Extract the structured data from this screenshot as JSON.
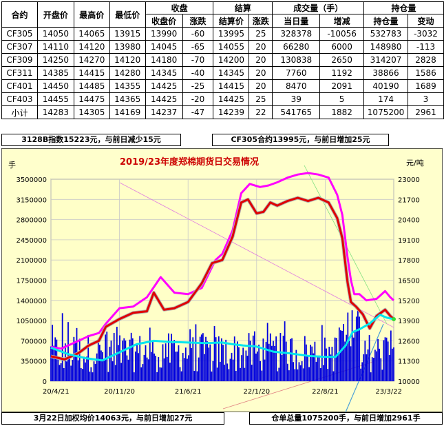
{
  "table": {
    "group_headers": {
      "close": "收盘",
      "settle": "结算",
      "volume": "成交量（手）",
      "oi": "持仓量"
    },
    "columns": [
      "合约",
      "开盘价",
      "最高价",
      "最低价",
      "收盘价",
      "涨跌",
      "结算价",
      "涨跌",
      "当日量",
      "增减",
      "持仓量",
      "变动"
    ],
    "rows": [
      [
        "CF305",
        "14050",
        "14065",
        "13915",
        "13990",
        "-60",
        "13995",
        "25",
        "328378",
        "-10056",
        "532783",
        "-3032"
      ],
      [
        "CF307",
        "14110",
        "14120",
        "13980",
        "14045",
        "-65",
        "14055",
        "20",
        "66280",
        "6000",
        "148980",
        "-113"
      ],
      [
        "CF309",
        "14250",
        "14270",
        "14120",
        "14180",
        "-70",
        "14200",
        "20",
        "130838",
        "2650",
        "314207",
        "2828"
      ],
      [
        "CF311",
        "14385",
        "14415",
        "14280",
        "14345",
        "-40",
        "14345",
        "20",
        "7760",
        "1192",
        "38866",
        "1586"
      ],
      [
        "CF401",
        "14450",
        "14485",
        "14355",
        "14425",
        "-25",
        "14415",
        "20",
        "8470",
        "2091",
        "40190",
        "1689"
      ],
      [
        "CF403",
        "14455",
        "14475",
        "14365",
        "14425",
        "-20",
        "14425",
        "25",
        "39",
        "5",
        "174",
        "3"
      ],
      [
        "小计",
        "14283",
        "14305",
        "14169",
        "14237",
        "-47",
        "14239",
        "22",
        "541765",
        "1882",
        "1075200",
        "2961"
      ]
    ]
  },
  "info": {
    "index_text": "3128B指数15223元，与前日减少15元",
    "contract_text": "CF305合约13995元，与前日增加25元",
    "weighted_text": "3月22日加权均价14063元，与前日增加27元",
    "warehouse_text": "仓单总量1075200手，与前日增加2961手"
  },
  "chart_data": {
    "type": "line",
    "title": "2019/23年度郑棉期货日交易情况",
    "left_axis_unit": "手",
    "right_axis_unit": "元/吨",
    "left_ticks": [
      0,
      350000,
      700000,
      1050000,
      1400000,
      1750000,
      2100000,
      2450000,
      2800000,
      3150000,
      3500000
    ],
    "right_ticks": [
      10000,
      11300,
      12600,
      13900,
      15200,
      16500,
      17800,
      19100,
      20400,
      21700,
      23000
    ],
    "x_ticks": [
      "20/4/21",
      "20/11/20",
      "21/6/21",
      "22/1/20",
      "22/8/21",
      "23/3/22"
    ],
    "ylim_left": [
      0,
      3500000
    ],
    "ylim_right": [
      10000,
      23000
    ],
    "grid": true,
    "series": [
      {
        "name": "",
        "axis": "right",
        "color": "#ff00ff",
        "points": [
          [
            0,
            12200
          ],
          [
            0.03,
            12100
          ],
          [
            0.07,
            12500
          ],
          [
            0.11,
            12900
          ],
          [
            0.14,
            13100
          ],
          [
            0.16,
            13700
          ],
          [
            0.2,
            14700
          ],
          [
            0.24,
            14800
          ],
          [
            0.28,
            15400
          ],
          [
            0.32,
            16700
          ],
          [
            0.36,
            15700
          ],
          [
            0.4,
            15600
          ],
          [
            0.44,
            16000
          ],
          [
            0.48,
            17800
          ],
          [
            0.5,
            18200
          ],
          [
            0.53,
            19700
          ],
          [
            0.555,
            22100
          ],
          [
            0.58,
            22700
          ],
          [
            0.61,
            22500
          ],
          [
            0.635,
            22600
          ],
          [
            0.66,
            22800
          ],
          [
            0.69,
            23100
          ],
          [
            0.72,
            23300
          ],
          [
            0.75,
            23400
          ],
          [
            0.78,
            23300
          ],
          [
            0.81,
            23100
          ],
          [
            0.835,
            22000
          ],
          [
            0.85,
            20700
          ],
          [
            0.865,
            18000
          ],
          [
            0.875,
            16500
          ],
          [
            0.885,
            15600
          ],
          [
            0.9,
            15600
          ],
          [
            0.92,
            15200
          ],
          [
            0.95,
            15300
          ],
          [
            0.975,
            15800
          ],
          [
            0.99,
            15400
          ],
          [
            1.0,
            15200
          ]
        ]
      },
      {
        "name": "",
        "axis": "right",
        "color": "#e00000",
        "points": [
          [
            0,
            11600
          ],
          [
            0.04,
            11400
          ],
          [
            0.08,
            11800
          ],
          [
            0.11,
            12300
          ],
          [
            0.14,
            12600
          ],
          [
            0.16,
            13500
          ],
          [
            0.2,
            14000
          ],
          [
            0.24,
            14400
          ],
          [
            0.28,
            14500
          ],
          [
            0.3,
            15700
          ],
          [
            0.33,
            14600
          ],
          [
            0.36,
            14700
          ],
          [
            0.4,
            15100
          ],
          [
            0.44,
            16300
          ],
          [
            0.47,
            17600
          ],
          [
            0.5,
            17800
          ],
          [
            0.53,
            19300
          ],
          [
            0.555,
            21500
          ],
          [
            0.575,
            21700
          ],
          [
            0.6,
            20800
          ],
          [
            0.62,
            20900
          ],
          [
            0.64,
            21500
          ],
          [
            0.66,
            21300
          ],
          [
            0.69,
            21600
          ],
          [
            0.72,
            21800
          ],
          [
            0.75,
            21600
          ],
          [
            0.78,
            21800
          ],
          [
            0.81,
            21500
          ],
          [
            0.835,
            20500
          ],
          [
            0.85,
            19200
          ],
          [
            0.865,
            16400
          ],
          [
            0.875,
            15100
          ],
          [
            0.89,
            14800
          ],
          [
            0.91,
            14300
          ],
          [
            0.93,
            13400
          ],
          [
            0.95,
            14200
          ],
          [
            0.975,
            14600
          ],
          [
            0.99,
            14200
          ],
          [
            1.0,
            13995
          ]
        ]
      },
      {
        "name": "",
        "axis": "left",
        "color": "#00e5ee",
        "points": [
          [
            0,
            580000
          ],
          [
            0.05,
            470000
          ],
          [
            0.1,
            400000
          ],
          [
            0.15,
            360000
          ],
          [
            0.2,
            500000
          ],
          [
            0.25,
            640000
          ],
          [
            0.3,
            700000
          ],
          [
            0.35,
            680000
          ],
          [
            0.4,
            670000
          ],
          [
            0.45,
            660000
          ],
          [
            0.5,
            670000
          ],
          [
            0.53,
            640000
          ],
          [
            0.56,
            620000
          ],
          [
            0.6,
            600000
          ],
          [
            0.65,
            510000
          ],
          [
            0.7,
            480000
          ],
          [
            0.75,
            440000
          ],
          [
            0.8,
            420000
          ],
          [
            0.83,
            420000
          ],
          [
            0.86,
            620000
          ],
          [
            0.88,
            850000
          ],
          [
            0.9,
            900000
          ],
          [
            0.93,
            1000000
          ],
          [
            0.96,
            1150000
          ],
          [
            0.98,
            1100000
          ],
          [
            1.0,
            1075200
          ]
        ]
      }
    ],
    "bar_series": {
      "name": "",
      "axis": "left",
      "color": "#0000dd",
      "typical_min": 150000,
      "typical_max": 1300000
    }
  }
}
